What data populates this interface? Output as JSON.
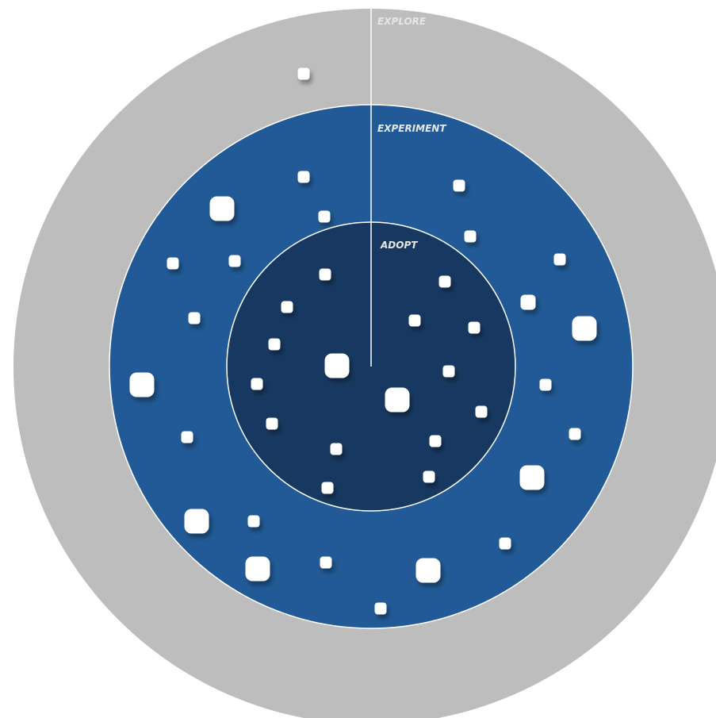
{
  "rings": [
    {
      "id": "explore",
      "label": "EXPLORE",
      "color": "#bdbdbd"
    },
    {
      "id": "experiment",
      "label": "EXPERIMENT",
      "color": "#215a96"
    },
    {
      "id": "adopt",
      "label": "ADOPT",
      "color": "#173961"
    }
  ],
  "divider_color": "#ffffff",
  "blip_color": "#ffffff",
  "blips": [
    {
      "ring": "explore",
      "size": "small"
    },
    {
      "ring": "experiment",
      "size": "small"
    },
    {
      "ring": "experiment",
      "size": "small"
    },
    {
      "ring": "experiment",
      "size": "large"
    },
    {
      "ring": "experiment",
      "size": "small"
    },
    {
      "ring": "experiment",
      "size": "small"
    },
    {
      "ring": "experiment",
      "size": "small"
    },
    {
      "ring": "experiment",
      "size": "small"
    },
    {
      "ring": "experiment",
      "size": "small"
    },
    {
      "ring": "experiment",
      "size": "medium"
    },
    {
      "ring": "experiment",
      "size": "small"
    },
    {
      "ring": "experiment",
      "size": "large"
    },
    {
      "ring": "experiment",
      "size": "large"
    },
    {
      "ring": "experiment",
      "size": "small"
    },
    {
      "ring": "experiment",
      "size": "small"
    },
    {
      "ring": "experiment",
      "size": "small"
    },
    {
      "ring": "experiment",
      "size": "large"
    },
    {
      "ring": "experiment",
      "size": "large"
    },
    {
      "ring": "experiment",
      "size": "small"
    },
    {
      "ring": "experiment",
      "size": "small"
    },
    {
      "ring": "experiment",
      "size": "large"
    },
    {
      "ring": "experiment",
      "size": "small"
    },
    {
      "ring": "experiment",
      "size": "large"
    },
    {
      "ring": "experiment",
      "size": "small"
    },
    {
      "ring": "adopt",
      "size": "small"
    },
    {
      "ring": "adopt",
      "size": "small"
    },
    {
      "ring": "adopt",
      "size": "small"
    },
    {
      "ring": "adopt",
      "size": "small"
    },
    {
      "ring": "adopt",
      "size": "small"
    },
    {
      "ring": "adopt",
      "size": "small"
    },
    {
      "ring": "adopt",
      "size": "large"
    },
    {
      "ring": "adopt",
      "size": "small"
    },
    {
      "ring": "adopt",
      "size": "small"
    },
    {
      "ring": "adopt",
      "size": "large"
    },
    {
      "ring": "adopt",
      "size": "small"
    },
    {
      "ring": "adopt",
      "size": "small"
    },
    {
      "ring": "adopt",
      "size": "small"
    },
    {
      "ring": "adopt",
      "size": "small"
    },
    {
      "ring": "adopt",
      "size": "small"
    },
    {
      "ring": "adopt",
      "size": "small"
    }
  ]
}
